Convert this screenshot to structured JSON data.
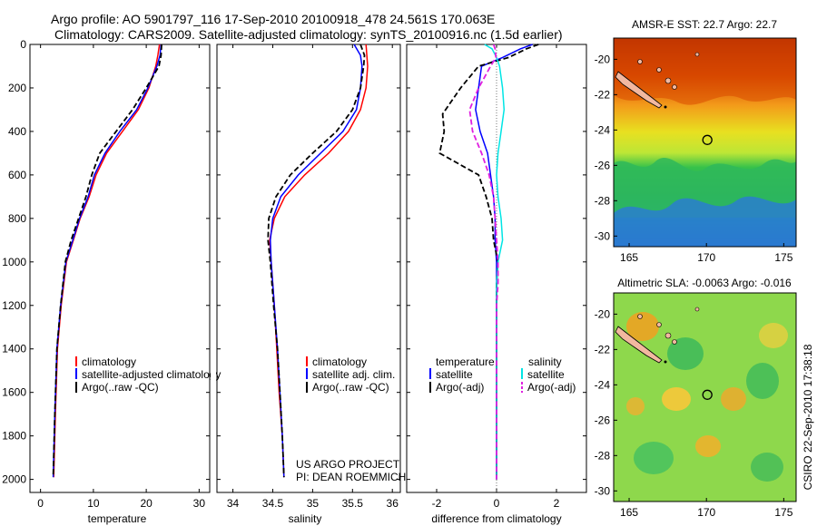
{
  "header": {
    "line1": "Argo profile: AO 5901797_116 17-Sep-2010 20100918_478 24.561S 170.063E",
    "line2": "Climatology: CARS2009. Satellite-adjusted climatology: synTS_20100916.nc (1.5d earlier)"
  },
  "side_stamp": "CSIRO 22-Sep-2010 17:38:18",
  "colors": {
    "climatology": "#ff0000",
    "satellite": "#0000ff",
    "argo": "#000000",
    "salinity_satellite": "#00e5e5",
    "salinity_argo": "#e020e0"
  },
  "chart_data": [
    {
      "type": "line",
      "name": "temperature-panel",
      "xlabel": "temperature",
      "ylabel": "",
      "xlim": [
        -2,
        32
      ],
      "ylim": [
        2060,
        0
      ],
      "xticks": [
        0,
        10,
        20,
        30
      ],
      "yticks": [
        0,
        200,
        400,
        600,
        800,
        1000,
        1200,
        1400,
        1600,
        1800,
        2000
      ],
      "legend": [
        "climatology",
        "satellite-adjusted climatology",
        "Argo(..raw -QC)"
      ],
      "series": [
        {
          "name": "climatology",
          "x": [
            22.5,
            22.2,
            21.8,
            20.5,
            18.5,
            15.5,
            12.5,
            10.5,
            9.2,
            7.5,
            6.2,
            4.9,
            3.9,
            3.2,
            2.8,
            2.5
          ],
          "y": [
            0,
            50,
            100,
            200,
            300,
            400,
            500,
            600,
            700,
            800,
            900,
            1000,
            1200,
            1400,
            1700,
            1990
          ]
        },
        {
          "name": "satellite-adjusted climatology",
          "x": [
            22.8,
            22.6,
            22.0,
            20.3,
            18.2,
            15.0,
            12.2,
            10.2,
            9.0,
            7.4,
            6.1,
            4.8,
            3.8,
            3.1,
            2.7,
            2.4
          ],
          "y": [
            0,
            50,
            100,
            200,
            300,
            400,
            500,
            600,
            700,
            800,
            900,
            1000,
            1200,
            1400,
            1700,
            1990
          ]
        },
        {
          "name": "Argo(..raw -QC)",
          "x": [
            22.9,
            22.8,
            22.4,
            20.0,
            17.4,
            14.3,
            11.2,
            9.7,
            8.6,
            7.2,
            5.8,
            4.7,
            3.8,
            3.1,
            2.7,
            2.4
          ],
          "y": [
            0,
            50,
            100,
            200,
            300,
            400,
            500,
            600,
            700,
            800,
            900,
            1000,
            1200,
            1400,
            1700,
            1990
          ]
        }
      ]
    },
    {
      "type": "line",
      "name": "salinity-panel",
      "xlabel": "salinity",
      "ylabel": "",
      "xlim": [
        33.8,
        36.1
      ],
      "ylim": [
        2060,
        0
      ],
      "xticks": [
        34,
        34.5,
        35,
        35.5,
        36
      ],
      "legend": [
        "climatology",
        "satellite adj. clim.",
        "Argo(..raw -QC)"
      ],
      "annotation": [
        "US ARGO PROJECT",
        "PI: DEAN ROEMMICH"
      ],
      "series": [
        {
          "name": "climatology",
          "x": [
            35.67,
            35.68,
            35.69,
            35.67,
            35.6,
            35.45,
            35.2,
            34.9,
            34.65,
            34.52,
            34.46,
            34.48,
            34.52,
            34.55,
            34.58,
            34.62,
            34.64
          ],
          "y": [
            0,
            50,
            100,
            200,
            300,
            400,
            500,
            600,
            700,
            800,
            900,
            1000,
            1200,
            1400,
            1600,
            1800,
            1990
          ]
        },
        {
          "name": "satellite adj. clim.",
          "x": [
            35.52,
            35.6,
            35.62,
            35.6,
            35.55,
            35.38,
            35.1,
            34.82,
            34.6,
            34.5,
            34.47,
            34.48,
            34.52,
            34.56,
            34.59,
            34.62,
            34.64
          ],
          "y": [
            0,
            50,
            100,
            200,
            300,
            400,
            500,
            600,
            700,
            800,
            900,
            1000,
            1200,
            1400,
            1600,
            1800,
            1990
          ]
        },
        {
          "name": "Argo(..raw -QC)",
          "x": [
            35.6,
            35.65,
            35.64,
            35.6,
            35.5,
            35.3,
            35.0,
            34.72,
            34.54,
            34.45,
            34.44,
            34.47,
            34.51,
            34.56,
            34.59,
            34.62,
            34.64
          ],
          "y": [
            0,
            50,
            100,
            200,
            300,
            400,
            500,
            600,
            700,
            800,
            900,
            1000,
            1200,
            1400,
            1600,
            1800,
            1990
          ]
        }
      ]
    },
    {
      "type": "line",
      "name": "difference-panel",
      "xlabel": "difference from climatology",
      "ylabel": "",
      "xlim": [
        -3.0,
        3.0
      ],
      "ylim": [
        2060,
        0
      ],
      "xticks": [
        -2,
        0,
        2
      ],
      "legend_groups": [
        {
          "title": "temperature",
          "items": [
            "satellite",
            "Argo(-adj)"
          ]
        },
        {
          "title": "salinity",
          "items": [
            "satellite",
            "Argo(-adj)"
          ]
        }
      ],
      "series": [
        {
          "name": "temperature satellite",
          "x": [
            1.2,
            0.8,
            0.2,
            -0.5,
            -0.6,
            -0.7,
            -0.55,
            -0.3,
            -0.2,
            -0.1,
            -0.05,
            -0.05,
            0,
            0,
            0,
            0,
            0,
            0,
            0
          ],
          "y": [
            0,
            20,
            60,
            100,
            200,
            300,
            400,
            500,
            600,
            700,
            800,
            900,
            1000,
            1100,
            1200,
            1400,
            1600,
            1800,
            2000
          ]
        },
        {
          "name": "temperature Argo(-adj)",
          "x": [
            1.4,
            1.0,
            0.4,
            -0.6,
            -1.2,
            -1.8,
            -1.75,
            -1.9,
            -0.6,
            -0.35,
            -0.15,
            -0.1,
            0.05,
            0,
            0,
            0,
            0,
            0,
            0
          ],
          "y": [
            0,
            20,
            60,
            100,
            200,
            320,
            400,
            500,
            600,
            700,
            800,
            900,
            1000,
            1100,
            1200,
            1400,
            1600,
            1800,
            2000
          ]
        },
        {
          "name": "salinity satellite",
          "x": [
            -0.4,
            -0.15,
            0,
            0.1,
            0.2,
            0.25,
            0.15,
            0.05,
            0,
            0.05,
            0.15,
            0.2,
            0.05,
            0,
            0,
            0,
            0,
            0,
            0
          ],
          "y": [
            0,
            20,
            60,
            100,
            200,
            300,
            400,
            500,
            600,
            700,
            800,
            900,
            1000,
            1100,
            1200,
            1400,
            1600,
            1800,
            2000
          ]
        },
        {
          "name": "salinity Argo(-adj)",
          "x": [
            -0.1,
            -0.05,
            -0.02,
            -0.2,
            -0.6,
            -0.9,
            -0.8,
            -0.5,
            -0.25,
            -0.1,
            -0.05,
            0,
            0.05,
            0.05,
            0,
            0,
            0,
            0,
            0
          ],
          "y": [
            0,
            20,
            60,
            100,
            200,
            300,
            400,
            500,
            600,
            700,
            800,
            900,
            1000,
            1100,
            1200,
            1400,
            1600,
            1800,
            2000
          ]
        }
      ]
    },
    {
      "type": "heatmap",
      "name": "sst-map",
      "title": "AMSR-E SST: 22.7 Argo: 22.7",
      "xlim": [
        164,
        175.8
      ],
      "ylim": [
        -30.6,
        -18.8
      ],
      "xticks": [
        165,
        170,
        175
      ],
      "yticks": [
        -20,
        -22,
        -24,
        -26,
        -28,
        -30
      ],
      "marker": {
        "lon": 170.06,
        "lat": -24.56
      }
    },
    {
      "type": "heatmap",
      "name": "sla-map",
      "title": "Altimetric SLA: -0.0063 Argo: -0.016",
      "xlim": [
        164,
        175.8
      ],
      "ylim": [
        -30.6,
        -18.8
      ],
      "xticks": [
        165,
        170,
        175
      ],
      "yticks": [
        -20,
        -22,
        -24,
        -26,
        -28,
        -30
      ],
      "marker": {
        "lon": 170.06,
        "lat": -24.56
      }
    }
  ]
}
